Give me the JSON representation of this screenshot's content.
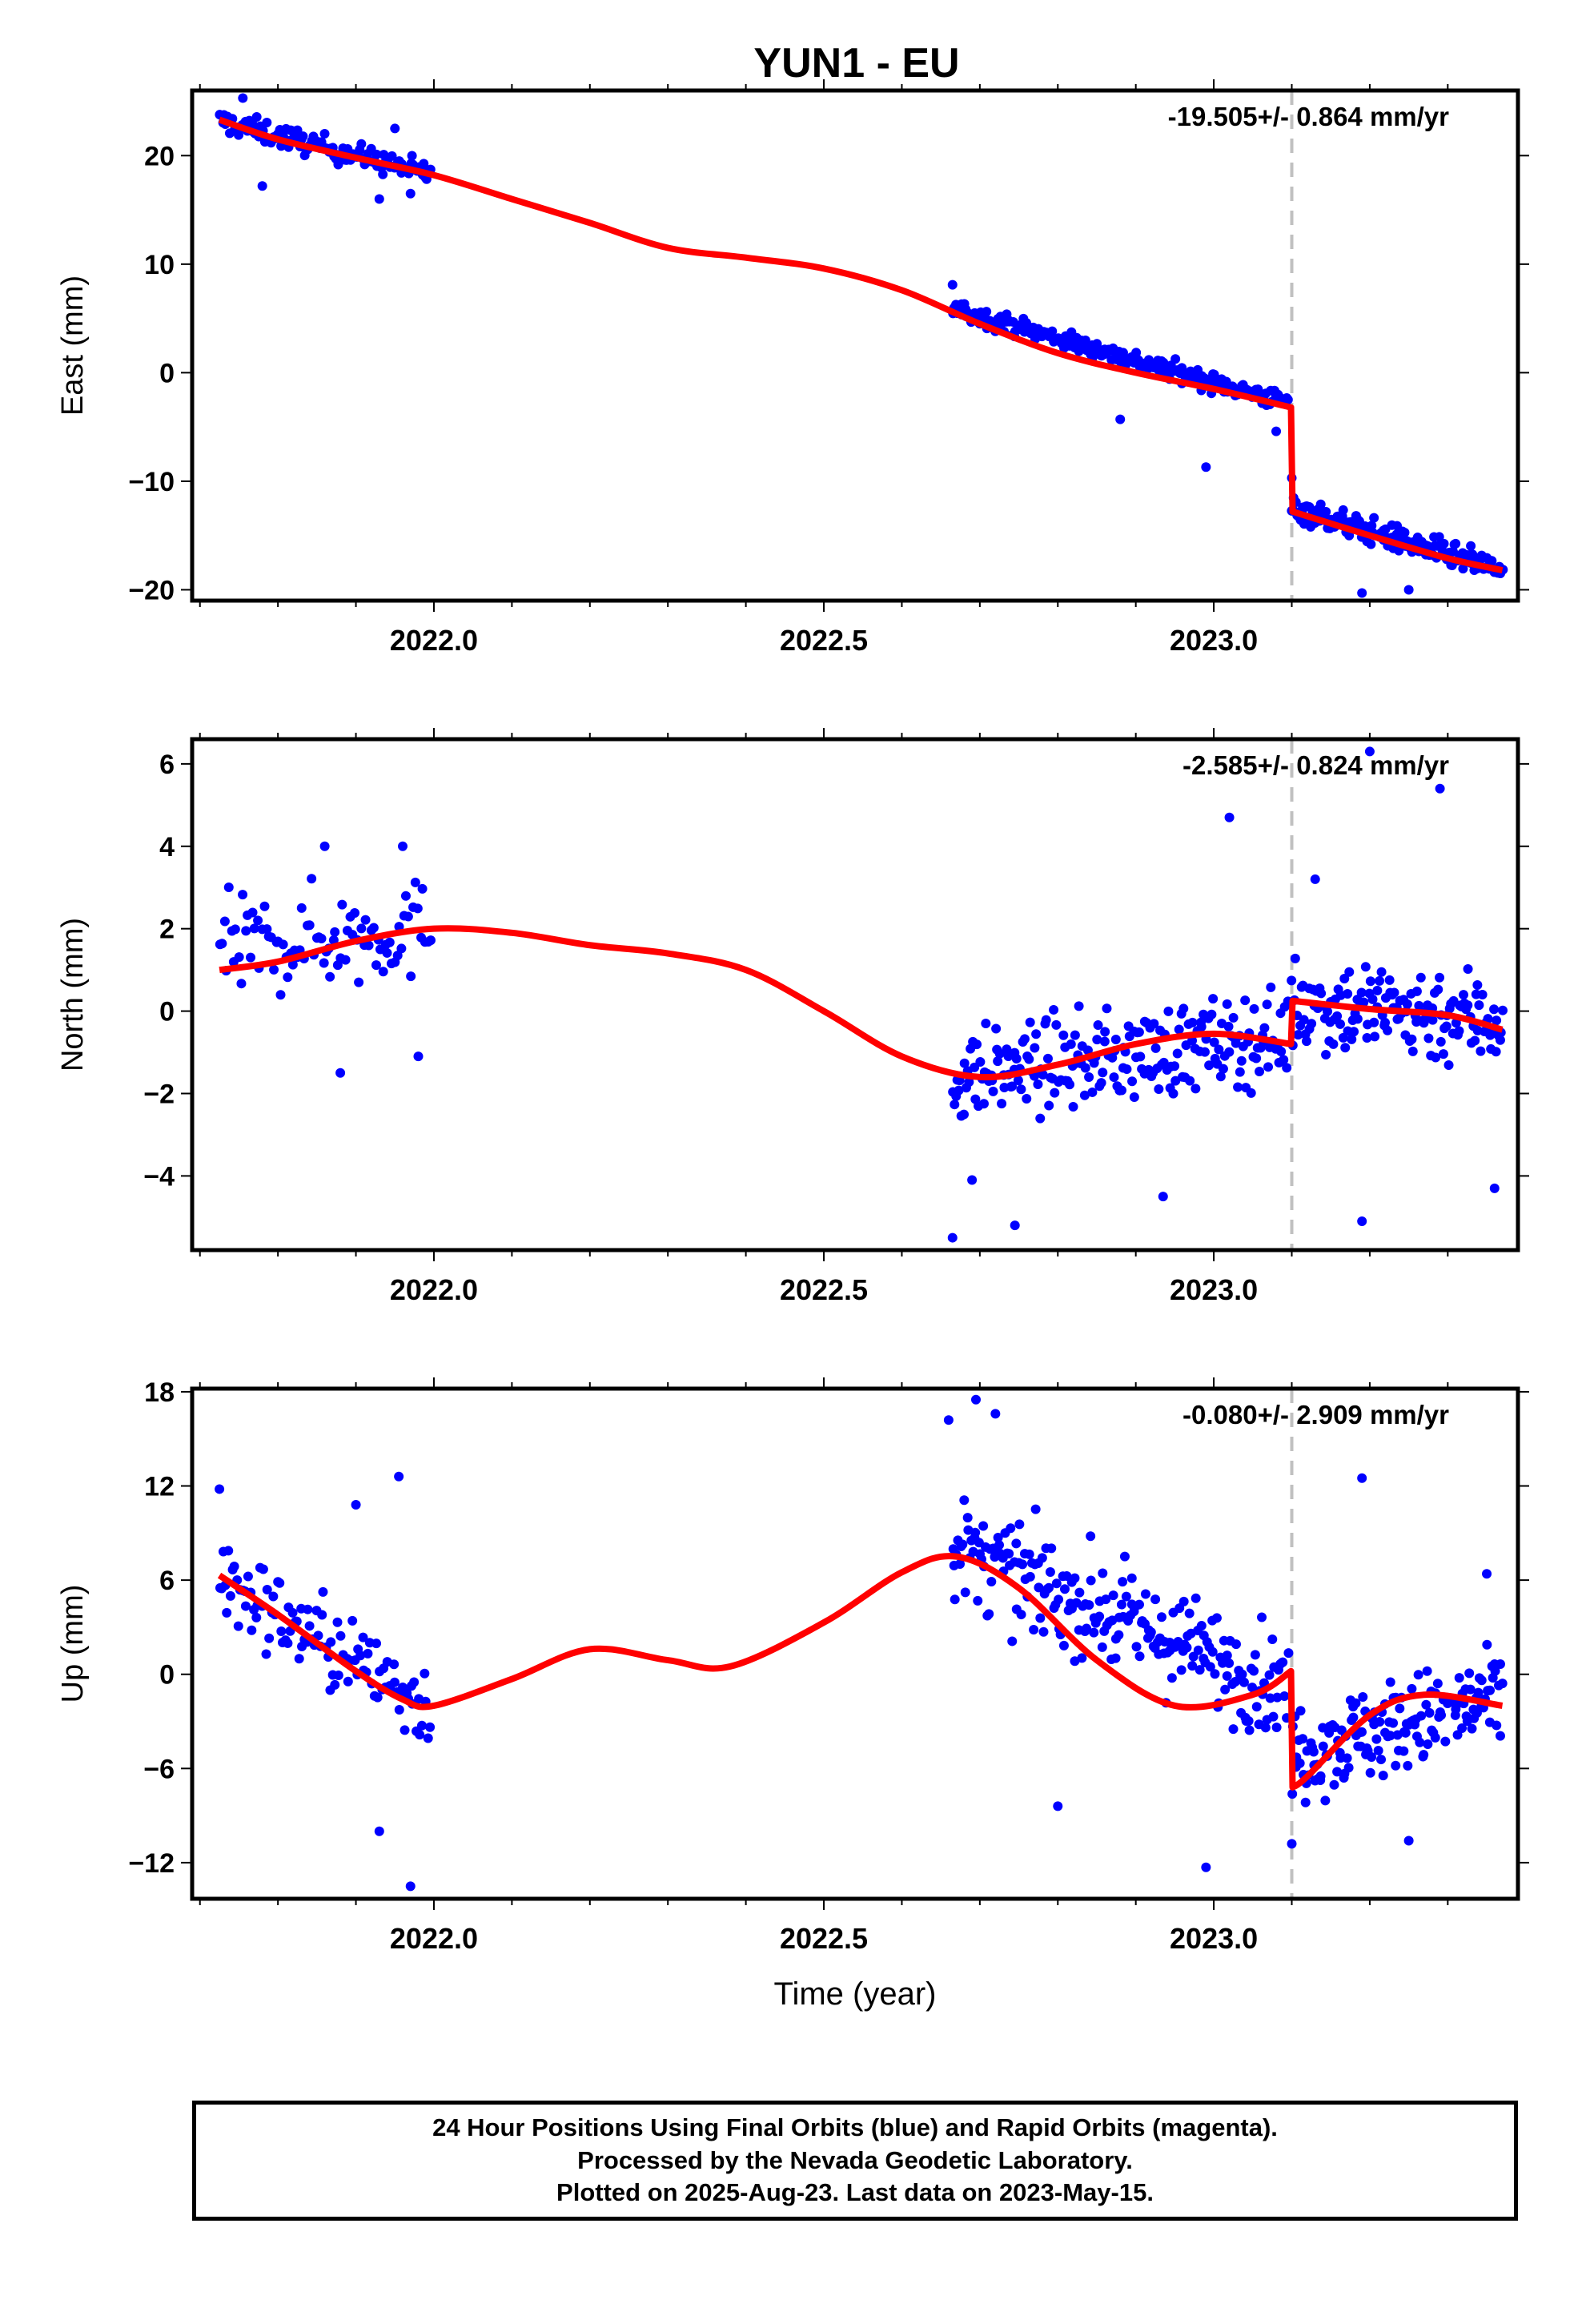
{
  "title": "YUN1 - EU",
  "colors": {
    "data": "#0000ff",
    "fit": "#ff0000",
    "event": "#c0c0c0"
  },
  "chart_data": [
    {
      "type": "scatter",
      "id": "east",
      "ylabel": "East (mm)",
      "xlabel": "",
      "rate_label": "-19.505+/- 0.864 mm/yr",
      "xlim": [
        2021.69,
        2023.39
      ],
      "ylim": [
        -21,
        26
      ],
      "yticks": [
        20,
        10,
        0,
        -10,
        -20
      ],
      "ytick_labels": [
        "20",
        "10",
        "0",
        "−10",
        "−20"
      ],
      "xticks": [
        2022.0,
        2022.5,
        2023.0
      ],
      "xtick_labels": [
        "2022.0",
        "2022.5",
        "2023.0"
      ],
      "event_x": 2023.1,
      "series": [
        {
          "kind": "points",
          "segments": [
            {
              "x_start": 2021.725,
              "x_end": 2021.995,
              "n": 130,
              "start": 23.2,
              "end": 18.3,
              "noise": 1.0,
              "outliers": [
                [
                  2021.78,
                  17.2
                ],
                [
                  2021.93,
                  16.0
                ],
                [
                  2021.97,
                  16.5
                ],
                [
                  2021.95,
                  22.5
                ],
                [
                  2021.755,
                  25.3
                ]
              ]
            },
            {
              "x_start": 2022.665,
              "x_end": 2023.095,
              "n": 240,
              "start": 5.9,
              "end": -2.8,
              "noise": 0.8,
              "outliers": [
                [
                  2022.665,
                  8.1
                ],
                [
                  2022.99,
                  -8.7
                ],
                [
                  2023.08,
                  -5.4
                ],
                [
                  2022.88,
                  -4.3
                ]
              ]
            },
            {
              "x_start": 2023.1,
              "x_end": 2023.37,
              "n": 170,
              "start": -12.4,
              "end": -18.3,
              "noise": 1.1,
              "outliers": [
                [
                  2023.19,
                  -20.3
                ],
                [
                  2023.25,
                  -20.0
                ],
                [
                  2023.1,
                  -9.7
                ]
              ]
            }
          ]
        },
        {
          "kind": "fit",
          "points": [
            [
              2021.725,
              23.3
            ],
            [
              2021.8,
              21.5
            ],
            [
              2021.9,
              19.8
            ],
            [
              2022.0,
              18.2
            ],
            [
              2022.1,
              16.0
            ],
            [
              2022.2,
              13.8
            ],
            [
              2022.3,
              11.5
            ],
            [
              2022.4,
              10.6
            ],
            [
              2022.5,
              9.6
            ],
            [
              2022.6,
              7.6
            ],
            [
              2022.7,
              4.5
            ],
            [
              2022.8,
              1.8
            ],
            [
              2022.9,
              0.0
            ],
            [
              2023.0,
              -1.5
            ],
            [
              2023.099,
              -3.2
            ],
            [
              2023.101,
              -12.8
            ],
            [
              2023.2,
              -15.0
            ],
            [
              2023.3,
              -17.1
            ],
            [
              2023.37,
              -18.2
            ]
          ]
        }
      ]
    },
    {
      "type": "scatter",
      "id": "north",
      "ylabel": "North (mm)",
      "xlabel": "",
      "rate_label": "-2.585+/- 0.824 mm/yr",
      "xlim": [
        2021.69,
        2023.39
      ],
      "ylim": [
        -5.8,
        6.6
      ],
      "yticks": [
        6,
        4,
        2,
        0,
        -2,
        -4
      ],
      "ytick_labels": [
        "6",
        "4",
        "2",
        "0",
        "−2",
        "−4"
      ],
      "xticks": [
        2022.0,
        2022.5,
        2023.0
      ],
      "xtick_labels": [
        "2022.0",
        "2022.5",
        "2023.0"
      ],
      "event_x": 2023.1,
      "series": [
        {
          "kind": "points",
          "segments": [
            {
              "x_start": 2021.725,
              "x_end": 2021.995,
              "n": 90,
              "start": 1.5,
              "end": 2.0,
              "noise": 1.1,
              "outliers": [
                [
                  2021.88,
                  -1.5
                ],
                [
                  2021.96,
                  4.0
                ],
                [
                  2021.98,
                  -1.1
                ],
                [
                  2021.86,
                  4.0
                ]
              ]
            },
            {
              "x_start": 2022.665,
              "x_end": 2023.095,
              "n": 220,
              "start": -1.6,
              "end": -0.6,
              "noise": 1.0,
              "outliers": [
                [
                  2022.665,
                  -5.5
                ],
                [
                  2022.745,
                  -5.2
                ],
                [
                  2022.935,
                  -4.5
                ],
                [
                  2023.02,
                  4.7
                ],
                [
                  2022.69,
                  -4.1
                ]
              ]
            },
            {
              "x_start": 2023.1,
              "x_end": 2023.37,
              "n": 150,
              "start": 0.2,
              "end": -0.2,
              "noise": 1.1,
              "outliers": [
                [
                  2023.19,
                  -5.1
                ],
                [
                  2023.36,
                  -4.3
                ],
                [
                  2023.29,
                  5.4
                ],
                [
                  2023.2,
                  6.3
                ],
                [
                  2023.13,
                  3.2
                ]
              ]
            }
          ]
        },
        {
          "kind": "fit",
          "points": [
            [
              2021.725,
              1.0
            ],
            [
              2021.8,
              1.2
            ],
            [
              2021.9,
              1.7
            ],
            [
              2022.0,
              2.0
            ],
            [
              2022.1,
              1.9
            ],
            [
              2022.2,
              1.6
            ],
            [
              2022.3,
              1.4
            ],
            [
              2022.4,
              1.0
            ],
            [
              2022.5,
              0.0
            ],
            [
              2022.6,
              -1.1
            ],
            [
              2022.7,
              -1.6
            ],
            [
              2022.8,
              -1.3
            ],
            [
              2022.9,
              -0.8
            ],
            [
              2023.0,
              -0.55
            ],
            [
              2023.099,
              -0.8
            ],
            [
              2023.101,
              0.25
            ],
            [
              2023.2,
              0.05
            ],
            [
              2023.3,
              -0.1
            ],
            [
              2023.37,
              -0.45
            ]
          ]
        }
      ]
    },
    {
      "type": "scatter",
      "id": "up",
      "ylabel": "Up (mm)",
      "xlabel": "Time (year)",
      "rate_label": "-0.080+/- 2.909 mm/yr",
      "xlim": [
        2021.69,
        2023.39
      ],
      "ylim": [
        -14.3,
        18.2
      ],
      "yticks": [
        18,
        12,
        6,
        0,
        -6,
        -12
      ],
      "ytick_labels": [
        "18",
        "12",
        "6",
        "0",
        "−6",
        "−12"
      ],
      "xticks": [
        2022.0,
        2022.5,
        2023.0
      ],
      "xtick_labels": [
        "2022.0",
        "2022.5",
        "2023.0"
      ],
      "event_x": 2023.1,
      "series": [
        {
          "kind": "points",
          "segments": [
            {
              "x_start": 2021.725,
              "x_end": 2021.995,
              "n": 110,
              "start": 6.0,
              "end": -2.0,
              "noise": 2.6,
              "outliers": [
                [
                  2021.725,
                  11.8
                ],
                [
                  2021.97,
                  -13.5
                ],
                [
                  2021.955,
                  12.6
                ],
                [
                  2021.93,
                  -10.0
                ],
                [
                  2021.9,
                  10.8
                ]
              ]
            },
            {
              "x_start": 2022.665,
              "x_end": 2023.095,
              "n": 230,
              "start": 8.0,
              "end": -1.0,
              "noise": 3.0,
              "outliers": [
                [
                  2022.695,
                  17.5
                ],
                [
                  2022.99,
                  -12.3
                ],
                [
                  2022.8,
                  -8.4
                ],
                [
                  2022.66,
                  16.2
                ],
                [
                  2022.72,
                  16.6
                ]
              ]
            },
            {
              "x_start": 2023.1,
              "x_end": 2023.37,
              "n": 160,
              "start": -5.0,
              "end": -1.6,
              "noise": 2.8,
              "outliers": [
                [
                  2023.19,
                  12.5
                ],
                [
                  2023.1,
                  -10.8
                ],
                [
                  2023.25,
                  -10.6
                ],
                [
                  2023.35,
                  6.4
                ]
              ]
            }
          ]
        },
        {
          "kind": "fit",
          "points": [
            [
              2021.725,
              6.3
            ],
            [
              2021.8,
              3.8
            ],
            [
              2021.9,
              0.2
            ],
            [
              2021.96,
              -1.6
            ],
            [
              2022.0,
              -2.0
            ],
            [
              2022.1,
              -0.3
            ],
            [
              2022.2,
              1.6
            ],
            [
              2022.3,
              0.9
            ],
            [
              2022.38,
              0.5
            ],
            [
              2022.5,
              3.3
            ],
            [
              2022.6,
              6.5
            ],
            [
              2022.67,
              7.5
            ],
            [
              2022.75,
              5.5
            ],
            [
              2022.85,
              0.9
            ],
            [
              2022.95,
              -2.0
            ],
            [
              2023.05,
              -1.3
            ],
            [
              2023.099,
              0.2
            ],
            [
              2023.101,
              -7.2
            ],
            [
              2023.12,
              -6.5
            ],
            [
              2023.2,
              -2.6
            ],
            [
              2023.27,
              -1.3
            ],
            [
              2023.37,
              -2.0
            ]
          ]
        }
      ]
    }
  ],
  "footer": {
    "line1": "24 Hour Positions Using Final Orbits (blue) and Rapid Orbits (magenta).",
    "line2": "Processed by the Nevada Geodetic Laboratory.",
    "line3": "Plotted on 2025-Aug-23. Last data on 2023-May-15."
  }
}
